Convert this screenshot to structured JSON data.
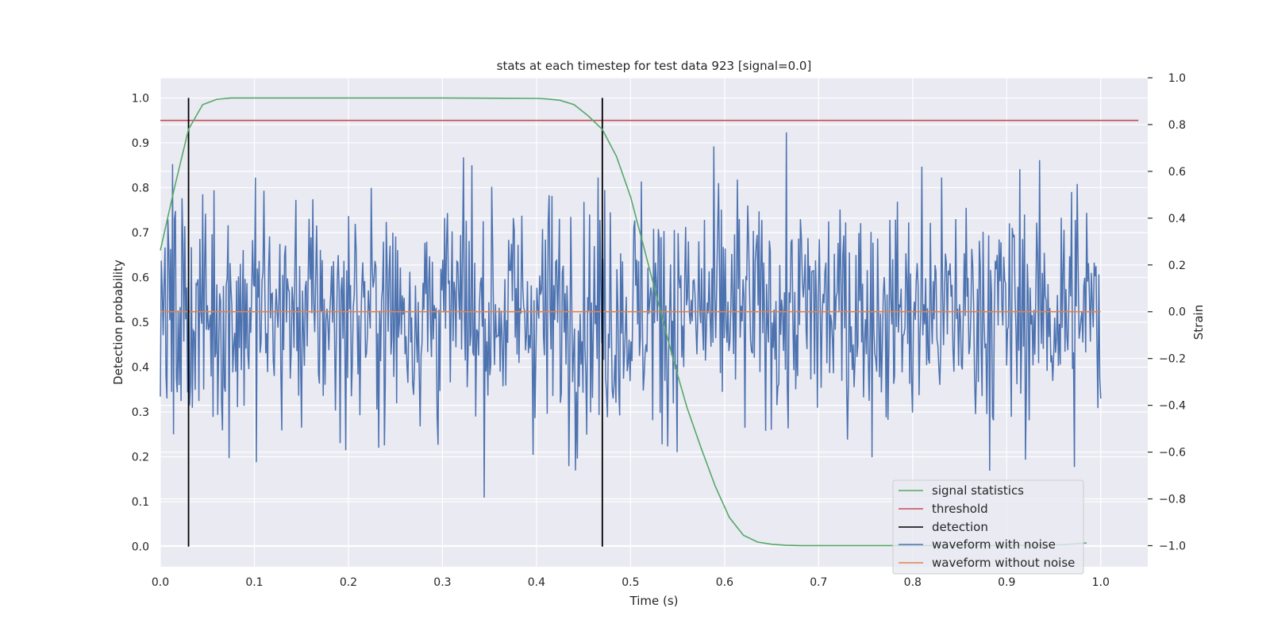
{
  "chart_data": {
    "type": "line",
    "title": "stats at each timestep for test data 923 [signal=0.0]",
    "xlabel": "Time (s)",
    "ylabel": "Detection probability",
    "y2label": "Strain",
    "xlim": [
      0.0,
      1.05
    ],
    "ylim": [
      -0.045,
      1.045
    ],
    "y2lim": [
      -1.09,
      1.0
    ],
    "xticks": [
      "0.0",
      "0.1",
      "0.2",
      "0.3",
      "0.4",
      "0.5",
      "0.6",
      "0.7",
      "0.8",
      "0.9",
      "1.0"
    ],
    "yticks": [
      "0.0",
      "0.1",
      "0.2",
      "0.3",
      "0.4",
      "0.5",
      "0.6",
      "0.7",
      "0.8",
      "0.9",
      "1.0"
    ],
    "y2ticks": [
      "−1.0",
      "−0.8",
      "−0.6",
      "−0.4",
      "−0.2",
      "0.0",
      "0.2",
      "0.4",
      "0.6",
      "0.8",
      "1.0"
    ],
    "grid": true,
    "legend_position": "lower right",
    "legend": [
      "signal statistics",
      "threshold",
      "detection",
      "waveform with noise",
      "waveform without noise"
    ],
    "colors": {
      "signal_statistics": "#55a868",
      "threshold": "#c44e52",
      "detection": "#000000",
      "waveform_with_noise": "#4c72b0",
      "waveform_without_noise": "#dd8452",
      "axes_background": "#eaeaf2",
      "grid": "#ffffff"
    },
    "series": [
      {
        "name": "signal statistics",
        "axis": "left",
        "x": [
          0.0,
          0.015,
          0.03,
          0.045,
          0.06,
          0.075,
          0.09,
          0.12,
          0.2,
          0.3,
          0.4,
          0.41,
          0.425,
          0.44,
          0.455,
          0.47,
          0.485,
          0.5,
          0.515,
          0.53,
          0.545,
          0.56,
          0.575,
          0.59,
          0.605,
          0.62,
          0.635,
          0.65,
          0.665,
          0.68,
          0.7,
          0.8,
          0.9,
          0.96,
          0.985
        ],
        "values": [
          0.66,
          0.8,
          0.93,
          0.985,
          0.997,
          1.0,
          1.0,
          1.0,
          1.0,
          1.0,
          0.999,
          0.998,
          0.995,
          0.985,
          0.96,
          0.93,
          0.87,
          0.78,
          0.66,
          0.54,
          0.42,
          0.31,
          0.22,
          0.135,
          0.065,
          0.025,
          0.01,
          0.005,
          0.003,
          0.002,
          0.002,
          0.002,
          0.002,
          0.004,
          0.008
        ]
      },
      {
        "name": "threshold",
        "axis": "left",
        "x": [
          0.0,
          1.04
        ],
        "values": [
          0.95,
          0.95
        ]
      },
      {
        "name": "detection",
        "axis": "left",
        "x": [
          0.03,
          0.47
        ],
        "values": [
          [
            0.0,
            1.0
          ],
          [
            0.0,
            1.0
          ]
        ]
      },
      {
        "name": "waveform with noise",
        "axis": "right",
        "x_range": [
          0.0,
          1.0
        ],
        "samples": 1000,
        "amplitude_range": [
          -1.0,
          1.0
        ]
      },
      {
        "name": "waveform without noise",
        "axis": "right",
        "x": [
          0.0,
          1.0
        ],
        "values": [
          0.0,
          0.0
        ]
      }
    ]
  }
}
